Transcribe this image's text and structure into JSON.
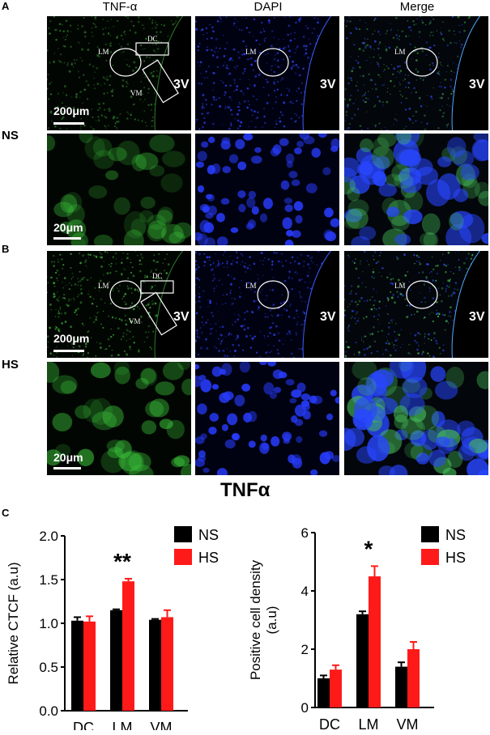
{
  "panels": {
    "a_letter": "A",
    "b_letter": "B",
    "c_letter": "C"
  },
  "columns": [
    "TNF-α",
    "DAPI",
    "Merge"
  ],
  "rows": {
    "ns": "NS",
    "hs": "HS"
  },
  "scale_bars": {
    "low_mag": "200μm",
    "high_mag": "20μm"
  },
  "region_labels": {
    "dc": "DC",
    "lm": "LM",
    "vm": "VM",
    "ventricle": "3V"
  },
  "colors": {
    "ns": "#000000",
    "hs": "#ff1a1a",
    "tnf": "#3fbf3f",
    "dapi": "#2a3cff"
  },
  "figure_title": "TNFα",
  "chart_data": [
    {
      "type": "bar",
      "ylabel": "Relative CTCF (a.u)",
      "categories": [
        "DC",
        "LM",
        "VM"
      ],
      "ylim": [
        0,
        2.0
      ],
      "yticks": [
        "0.0",
        "0.5",
        "1.0",
        "1.5",
        "2.0"
      ],
      "series": [
        {
          "name": "NS",
          "values": [
            1.03,
            1.15,
            1.04
          ],
          "errors": [
            0.04,
            0.01,
            0.01
          ]
        },
        {
          "name": "HS",
          "values": [
            1.02,
            1.48,
            1.07
          ],
          "errors": [
            0.06,
            0.03,
            0.08
          ]
        }
      ],
      "annotations": [
        {
          "category": "LM",
          "text": "**"
        }
      ],
      "legend": "top-right"
    },
    {
      "type": "bar",
      "ylabel": "Positive cell density (a.u)",
      "categories": [
        "DC",
        "LM",
        "VM"
      ],
      "ylim": [
        0,
        6
      ],
      "yticks": [
        "0",
        "2",
        "4",
        "6"
      ],
      "series": [
        {
          "name": "NS",
          "values": [
            1.0,
            3.2,
            1.4
          ],
          "errors": [
            0.1,
            0.1,
            0.15
          ]
        },
        {
          "name": "HS",
          "values": [
            1.3,
            4.5,
            2.0
          ],
          "errors": [
            0.15,
            0.35,
            0.25
          ]
        }
      ],
      "annotations": [
        {
          "category": "LM",
          "text": "*"
        }
      ],
      "legend": "top-right"
    }
  ]
}
